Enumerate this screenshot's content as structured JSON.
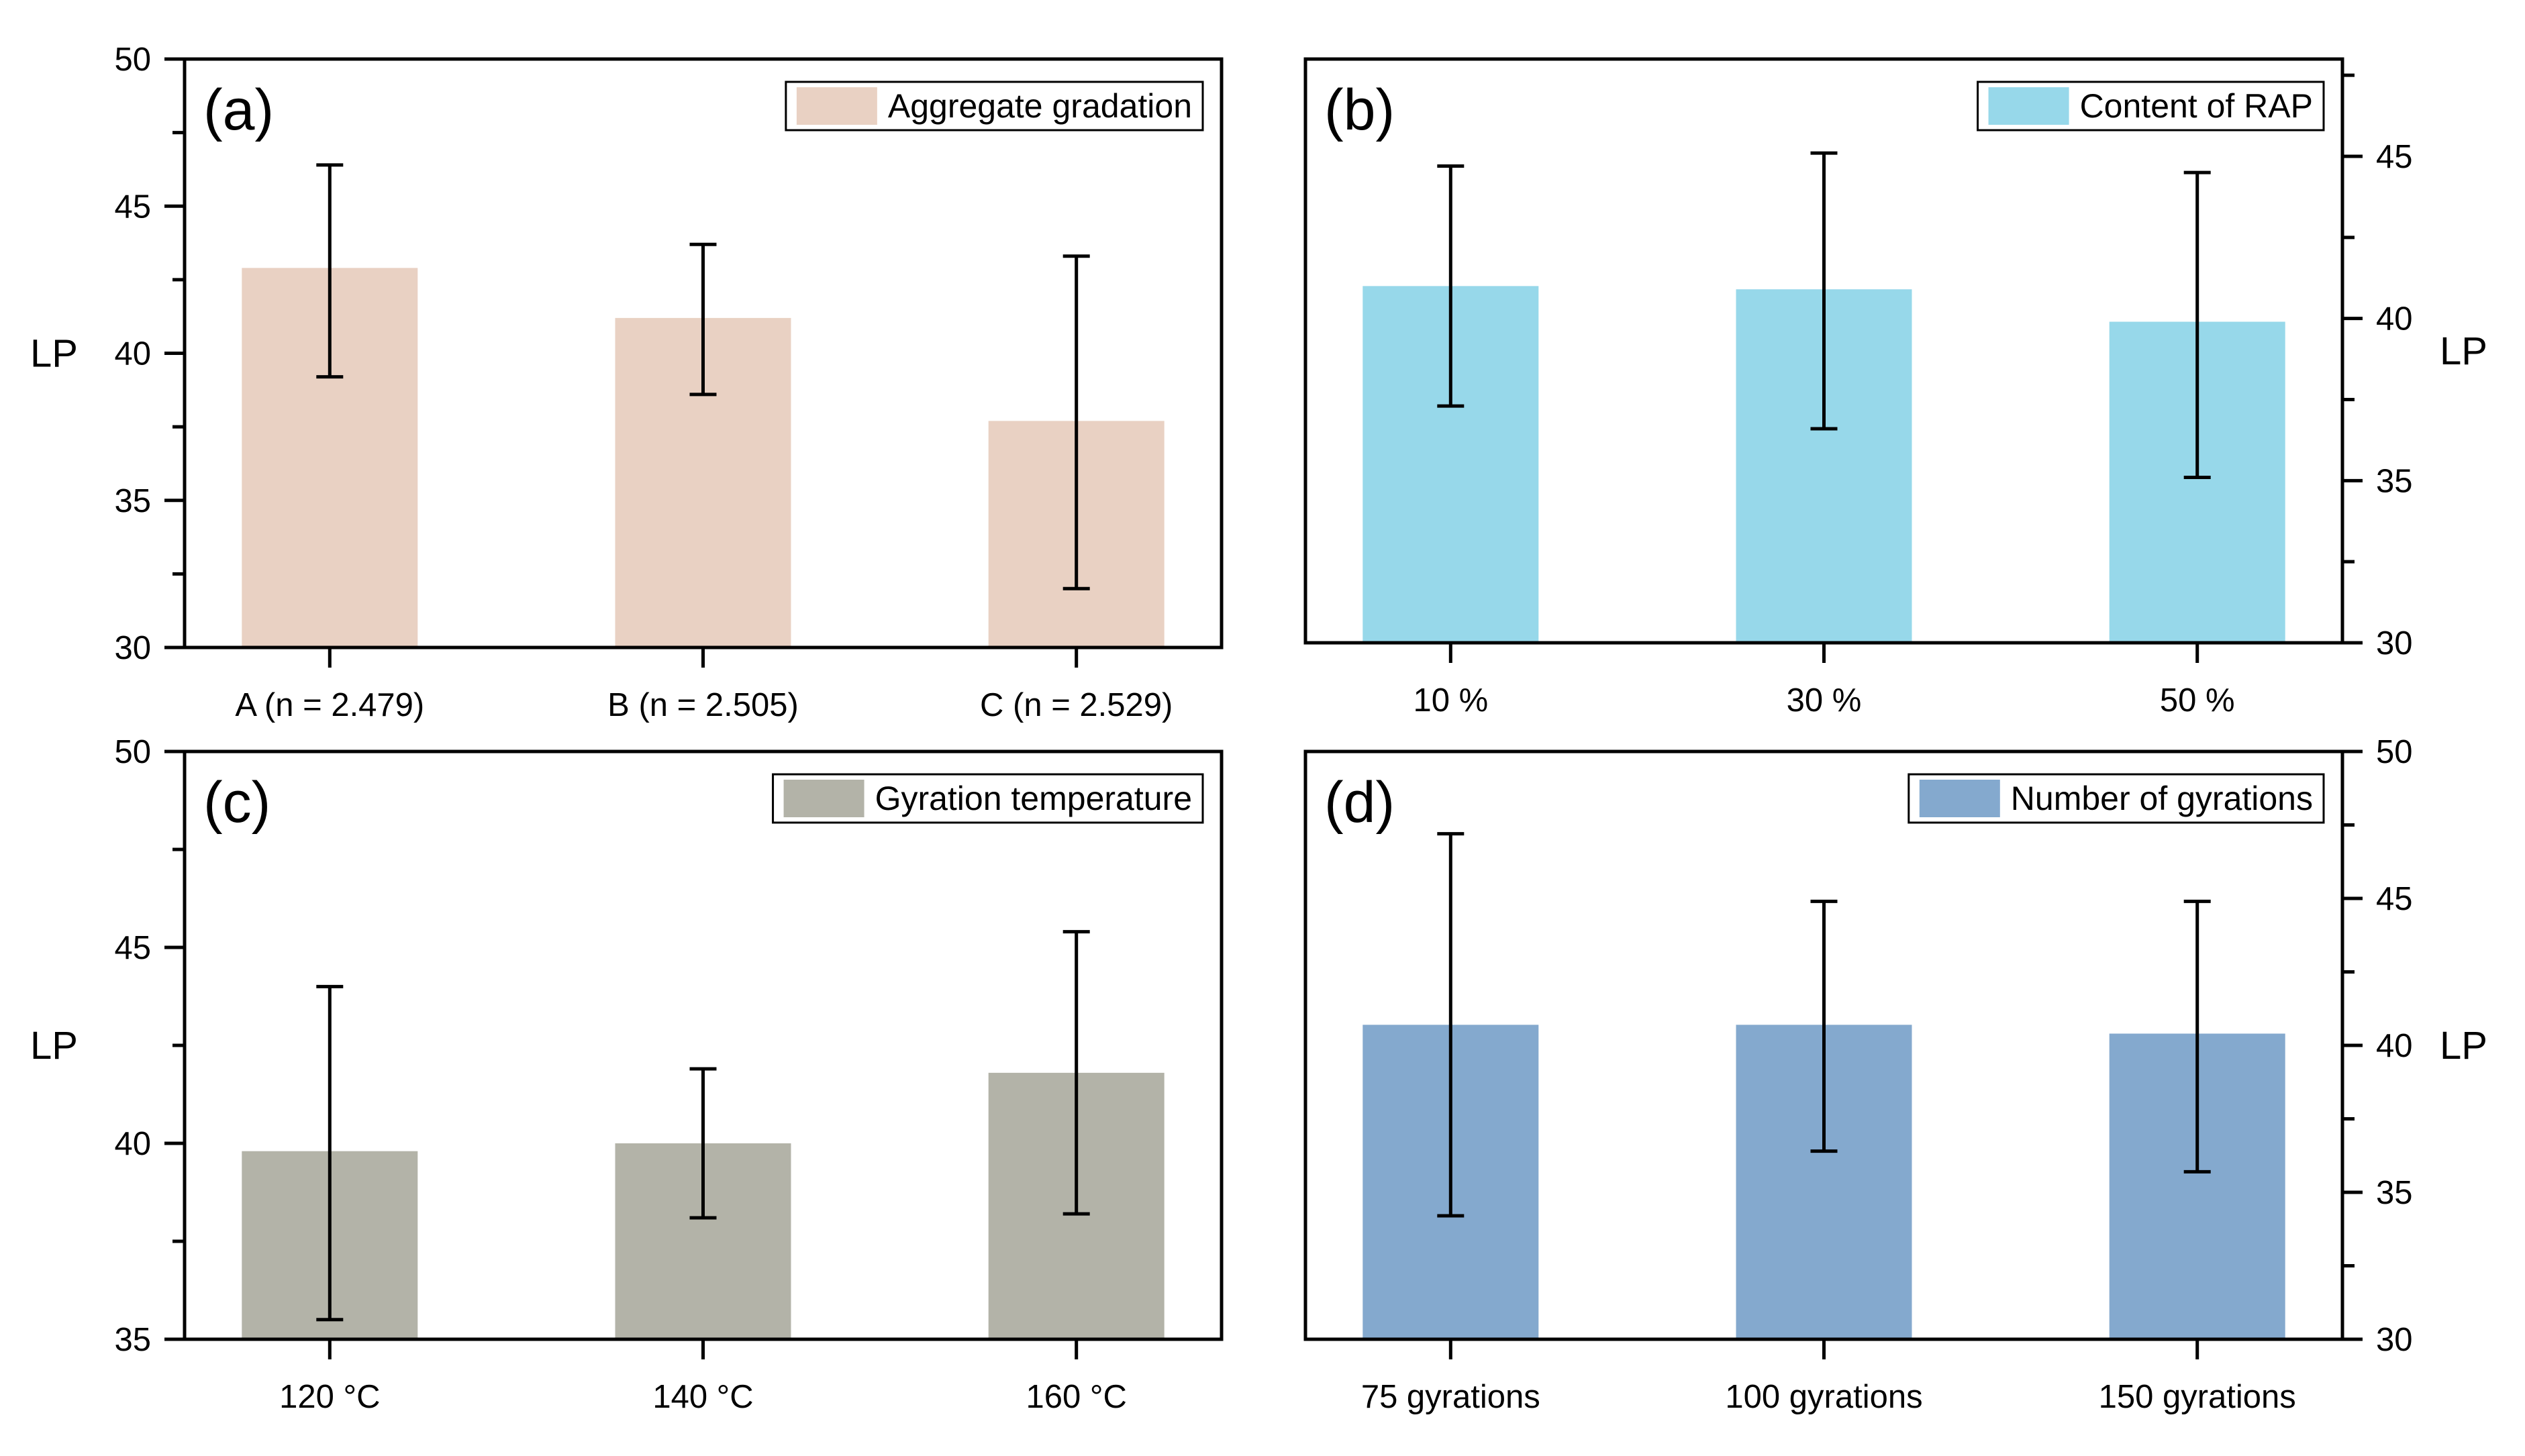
{
  "chart_data": [
    {
      "id": "a",
      "type": "bar",
      "panel_label": "(a)",
      "legend": "Aggregate gradation",
      "color": "#E9D1C3",
      "categories": [
        "A (n = 2.479)",
        "B (n = 2.505)",
        "C (n = 2.529)"
      ],
      "values": [
        42.9,
        41.2,
        37.7
      ],
      "error_low": [
        39.2,
        38.6,
        32.0
      ],
      "error_high": [
        46.4,
        43.7,
        43.3
      ],
      "ylabel": "LP",
      "ylim": [
        30,
        50
      ],
      "yticks": [
        30,
        35,
        40,
        45,
        50
      ],
      "yaxis_side": "left",
      "legend_position": "top-right"
    },
    {
      "id": "b",
      "type": "bar",
      "panel_label": "(b)",
      "legend": "Content of RAP",
      "color": "#97D8EA",
      "categories": [
        "10 %",
        "30 %",
        "50 %"
      ],
      "values": [
        41.0,
        40.9,
        39.9
      ],
      "error_low": [
        37.3,
        36.6,
        35.1
      ],
      "error_high": [
        44.7,
        45.1,
        44.5
      ],
      "ylabel": "LP",
      "ylim": [
        30,
        48
      ],
      "yticks": [
        30,
        35,
        40,
        45
      ],
      "yaxis_side": "right",
      "legend_position": "top-right"
    },
    {
      "id": "c",
      "type": "bar",
      "panel_label": "(c)",
      "legend": "Gyration temperature",
      "color": "#B3B3A8",
      "categories": [
        "120 °C",
        "140 °C",
        "160 °C"
      ],
      "values": [
        39.8,
        40.0,
        41.8
      ],
      "error_low": [
        35.5,
        38.1,
        38.2
      ],
      "error_high": [
        44.0,
        41.9,
        45.4
      ],
      "ylabel": "LP",
      "ylim": [
        35,
        50
      ],
      "yticks": [
        35,
        40,
        45,
        50
      ],
      "yaxis_side": "left",
      "legend_position": "top-right"
    },
    {
      "id": "d",
      "type": "bar",
      "panel_label": "(d)",
      "legend": "Number of gyrations",
      "color": "#84A9CE",
      "categories": [
        "75 gyrations",
        "100 gyrations",
        "150 gyrations"
      ],
      "values": [
        40.7,
        40.7,
        40.4
      ],
      "error_low": [
        34.2,
        36.4,
        35.7
      ],
      "error_high": [
        47.2,
        44.9,
        44.9
      ],
      "ylabel": "LP",
      "ylim": [
        30,
        50
      ],
      "yticks": [
        30,
        35,
        40,
        45,
        50
      ],
      "yaxis_side": "right",
      "legend_position": "top-right"
    }
  ]
}
